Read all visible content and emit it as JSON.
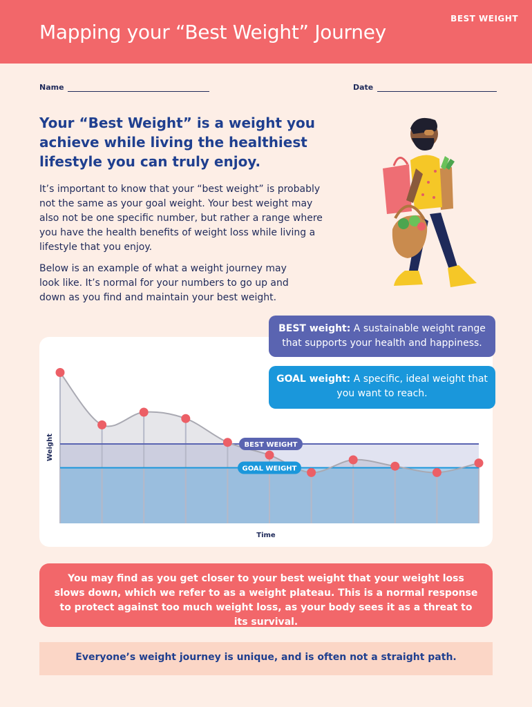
{
  "header": {
    "title": "Mapping your “Best Weight” Journey",
    "tag": "BEST WEIGHT"
  },
  "form": {
    "name_label": "Name",
    "date_label": "Date"
  },
  "intro": {
    "headline": "Your “Best Weight” is a weight you achieve while living the healthiest lifestyle you can truly enjoy.",
    "paragraph1": "It’s important to know that your “best weight” is probably not the same as your goal weight. Your best weight may also not be one specific number, but rather a range where you have the health benefits of weight loss while living a lifestyle that you enjoy.",
    "paragraph2": "Below is an example of what a weight journey may look like. It’s normal for your numbers to go up and down as you find and maintain your best weight."
  },
  "callouts": {
    "best_term": "BEST weight:",
    "best_text": "A sustainable weight range that supports your health and happiness.",
    "goal_term": "GOAL weight:",
    "goal_text": "A specific, ideal weight that you want to reach."
  },
  "chart_data": {
    "type": "line",
    "xlabel": "Time",
    "ylabel": "Weight",
    "x": [
      1,
      2,
      3,
      4,
      5,
      6,
      7,
      8,
      9,
      10,
      11
    ],
    "values": [
      9.5,
      6.2,
      7.0,
      6.6,
      5.1,
      4.3,
      3.2,
      4.0,
      3.6,
      3.2,
      3.8
    ],
    "ylim": [
      0,
      10
    ],
    "bands": [
      {
        "name": "BEST WEIGHT",
        "value": 5.0,
        "color": "#5a64b1"
      },
      {
        "name": "GOAL WEIGHT",
        "value": 3.5,
        "color": "#1a97db"
      }
    ],
    "colors": {
      "line": "#a9a9b2",
      "marker": "#ec5f66",
      "area": "#e6e6ea"
    }
  },
  "plateau_note": "You may find as you get closer to your best weight that your weight loss slows down, which we refer to as a weight plateau. This is a normal response to protect against too much weight loss, as your body sees it as a threat to its survival.",
  "closing_note": "Everyone’s weight journey is unique, and is often not a straight path.",
  "illustration": {
    "icon": "person-walking-with-groceries-icon"
  }
}
